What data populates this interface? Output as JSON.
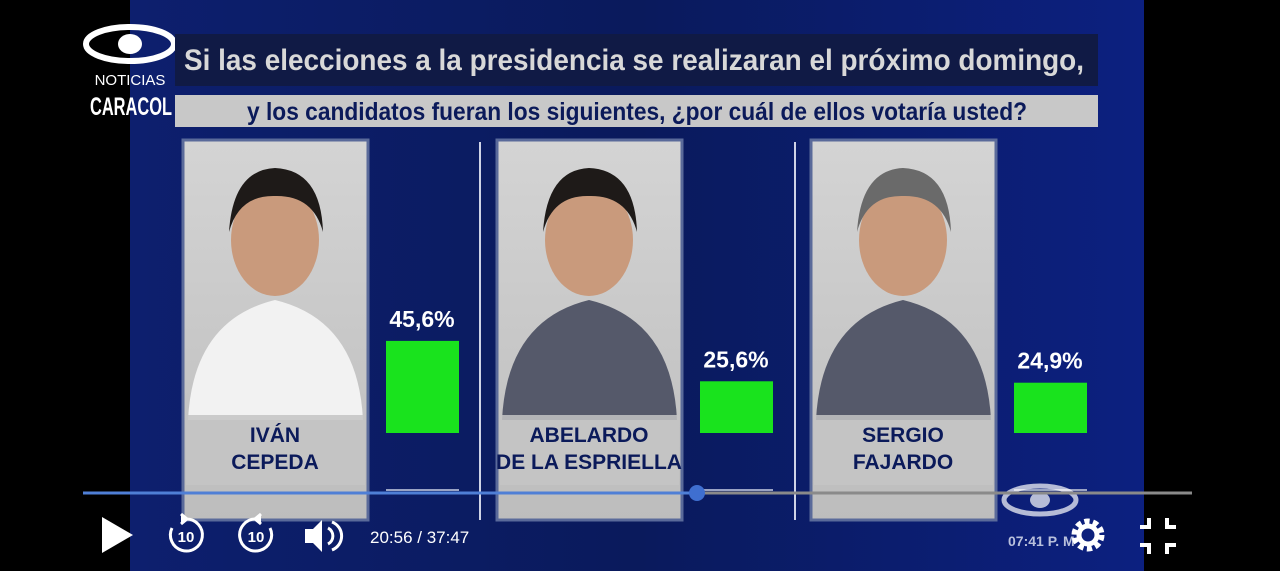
{
  "header": {
    "logo_line1": "NOTICIAS",
    "logo_line2": "CARACOL",
    "question_line1": "Si las elecciones a la presidencia se realizaran el próximo domingo,",
    "question_line2": "y los candidatos fueran los siguientes, ¿por cuál de ellos votaría usted?"
  },
  "candidates": [
    {
      "name_lines": [
        "IVÁN",
        "CEPEDA"
      ],
      "value": 45.6,
      "value_label": "45,6%"
    },
    {
      "name_lines": [
        "ABELARDO",
        "DE LA ESPRIELLA"
      ],
      "value": 25.6,
      "value_label": "25,6%"
    },
    {
      "name_lines": [
        "SERGIO",
        "FAJARDO"
      ],
      "value": 24.9,
      "value_label": "24,9%"
    }
  ],
  "player": {
    "rewind": "10",
    "forward": "10",
    "time": "20:56 / 37:47",
    "clock": "07:41 P. M"
  }
}
